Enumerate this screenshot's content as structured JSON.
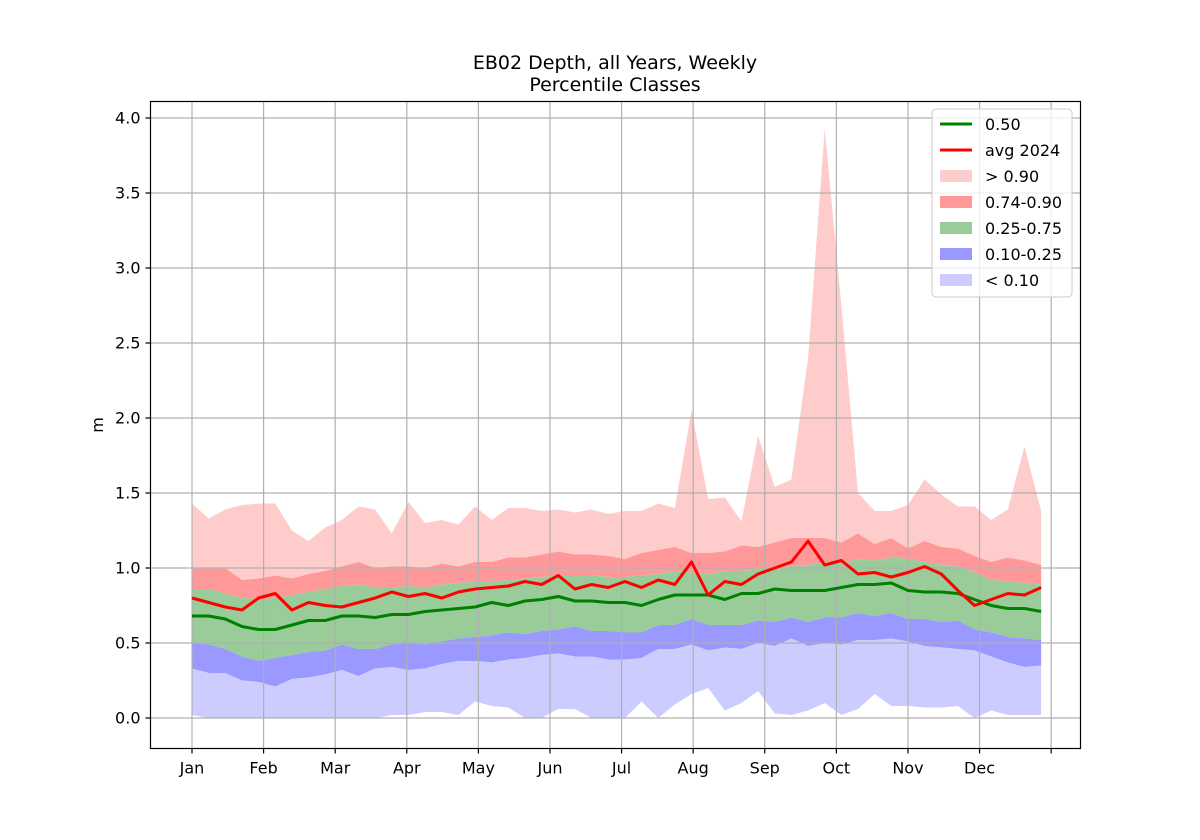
{
  "chart_data": {
    "type": "area",
    "title": "EB02 Depth, all Years, Weekly",
    "subtitle": "Percentile Classes",
    "xlabel": "",
    "ylabel": "m",
    "ylim": [
      -0.2,
      4.12
    ],
    "yticks": [
      "0.0",
      "0.5",
      "1.0",
      "1.5",
      "2.0",
      "2.5",
      "3.0",
      "3.5",
      "4.0"
    ],
    "xticks": [
      "Jan",
      "Feb",
      "Mar",
      "Apr",
      "May",
      "Jun",
      "Jul",
      "Aug",
      "Sep",
      "Oct",
      "Nov",
      "Dec",
      ""
    ],
    "grid": true,
    "legend_position": "top-right",
    "weeks": 52,
    "colors": {
      "median": "#008000",
      "avg2024": "#ff0000",
      "gt90": "#ffcccc",
      "p74_90": "#ff9999",
      "p25_75": "#99cc99",
      "p10_25": "#9999ff",
      "lt10": "#ccccff"
    },
    "legend": [
      {
        "label": "0.50",
        "kind": "line",
        "color": "#008000"
      },
      {
        "label": "avg 2024",
        "kind": "line",
        "color": "#ff0000"
      },
      {
        "label": "> 0.90",
        "kind": "patch",
        "color": "#ffcccc"
      },
      {
        "label": "0.74-0.90",
        "kind": "patch",
        "color": "#ff9999"
      },
      {
        "label": "0.25-0.75",
        "kind": "patch",
        "color": "#99cc99"
      },
      {
        "label": "0.10-0.25",
        "kind": "patch",
        "color": "#9999ff"
      },
      {
        "label": "< 0.10",
        "kind": "patch",
        "color": "#ccccff"
      }
    ],
    "series": {
      "max": [
        1.43,
        1.33,
        1.39,
        1.42,
        1.43,
        1.43,
        1.25,
        1.18,
        1.27,
        1.32,
        1.41,
        1.39,
        1.23,
        1.44,
        1.3,
        1.32,
        1.29,
        1.41,
        1.32,
        1.4,
        1.4,
        1.38,
        1.39,
        1.37,
        1.39,
        1.36,
        1.38,
        1.38,
        1.43,
        1.4,
        2.05,
        1.46,
        1.47,
        1.31,
        1.88,
        1.54,
        1.59,
        2.4,
        3.93,
        2.75,
        1.5,
        1.38,
        1.38,
        1.42,
        1.59,
        1.49,
        1.41,
        1.41,
        1.32,
        1.39,
        1.81,
        1.38
      ],
      "p90": [
        1.0,
        1.0,
        1.0,
        0.92,
        0.93,
        0.95,
        0.93,
        0.96,
        0.98,
        1.01,
        1.04,
        1.0,
        1.01,
        1.01,
        1.0,
        1.03,
        1.01,
        1.04,
        1.04,
        1.07,
        1.07,
        1.09,
        1.11,
        1.09,
        1.09,
        1.08,
        1.06,
        1.1,
        1.12,
        1.14,
        1.1,
        1.1,
        1.11,
        1.15,
        1.14,
        1.17,
        1.2,
        1.2,
        1.2,
        1.17,
        1.23,
        1.16,
        1.2,
        1.13,
        1.18,
        1.14,
        1.13,
        1.08,
        1.04,
        1.07,
        1.05,
        1.02
      ],
      "p74": [
        0.86,
        0.86,
        0.83,
        0.8,
        0.79,
        0.8,
        0.82,
        0.84,
        0.86,
        0.88,
        0.89,
        0.87,
        0.87,
        0.88,
        0.87,
        0.89,
        0.9,
        0.91,
        0.91,
        0.92,
        0.93,
        0.94,
        0.95,
        0.95,
        0.95,
        0.94,
        0.94,
        0.95,
        0.96,
        0.98,
        0.97,
        0.96,
        0.98,
        0.98,
        0.99,
        1.01,
        1.01,
        1.02,
        1.04,
        1.03,
        1.06,
        1.05,
        1.07,
        1.06,
        1.04,
        1.02,
        1.01,
        0.97,
        0.92,
        0.91,
        0.9,
        0.89
      ],
      "p25": [
        0.5,
        0.49,
        0.46,
        0.41,
        0.38,
        0.4,
        0.42,
        0.44,
        0.45,
        0.49,
        0.46,
        0.46,
        0.49,
        0.5,
        0.49,
        0.51,
        0.53,
        0.54,
        0.55,
        0.57,
        0.56,
        0.58,
        0.59,
        0.61,
        0.58,
        0.58,
        0.57,
        0.57,
        0.62,
        0.62,
        0.66,
        0.62,
        0.62,
        0.62,
        0.65,
        0.64,
        0.67,
        0.64,
        0.67,
        0.67,
        0.7,
        0.68,
        0.7,
        0.66,
        0.66,
        0.64,
        0.65,
        0.59,
        0.57,
        0.54,
        0.53,
        0.52
      ],
      "p10": [
        0.33,
        0.3,
        0.3,
        0.25,
        0.24,
        0.21,
        0.26,
        0.27,
        0.29,
        0.32,
        0.28,
        0.33,
        0.34,
        0.32,
        0.33,
        0.36,
        0.38,
        0.38,
        0.37,
        0.39,
        0.4,
        0.42,
        0.43,
        0.41,
        0.41,
        0.39,
        0.39,
        0.4,
        0.46,
        0.46,
        0.49,
        0.45,
        0.47,
        0.46,
        0.5,
        0.48,
        0.53,
        0.48,
        0.5,
        0.49,
        0.52,
        0.52,
        0.53,
        0.51,
        0.48,
        0.47,
        0.46,
        0.45,
        0.41,
        0.37,
        0.34,
        0.35
      ],
      "min": [
        0.02,
        0.0,
        0.0,
        0.0,
        0.0,
        0.0,
        0.0,
        0.0,
        0.0,
        0.0,
        0.0,
        0.0,
        0.02,
        0.02,
        0.04,
        0.04,
        0.02,
        0.11,
        0.08,
        0.07,
        0.0,
        0.0,
        0.06,
        0.06,
        0.0,
        0.0,
        0.0,
        0.11,
        0.0,
        0.09,
        0.16,
        0.2,
        0.05,
        0.1,
        0.18,
        0.03,
        0.02,
        0.05,
        0.1,
        0.02,
        0.06,
        0.16,
        0.08,
        0.08,
        0.07,
        0.07,
        0.08,
        0.0,
        0.05,
        0.02,
        0.02,
        0.02
      ],
      "median": [
        0.68,
        0.68,
        0.66,
        0.61,
        0.59,
        0.59,
        0.62,
        0.65,
        0.65,
        0.68,
        0.68,
        0.67,
        0.69,
        0.69,
        0.71,
        0.72,
        0.73,
        0.74,
        0.77,
        0.75,
        0.78,
        0.79,
        0.81,
        0.78,
        0.78,
        0.77,
        0.77,
        0.75,
        0.79,
        0.82,
        0.82,
        0.82,
        0.79,
        0.83,
        0.83,
        0.86,
        0.85,
        0.85,
        0.85,
        0.87,
        0.89,
        0.89,
        0.9,
        0.85,
        0.84,
        0.84,
        0.83,
        0.79,
        0.75,
        0.73,
        0.73,
        0.71
      ],
      "avg2024": [
        0.8,
        0.77,
        0.74,
        0.72,
        0.8,
        0.83,
        0.72,
        0.77,
        0.75,
        0.74,
        0.77,
        0.8,
        0.84,
        0.81,
        0.83,
        0.8,
        0.84,
        0.86,
        0.87,
        0.88,
        0.91,
        0.89,
        0.95,
        0.86,
        0.89,
        0.87,
        0.91,
        0.87,
        0.92,
        0.89,
        1.04,
        0.82,
        0.91,
        0.89,
        0.96,
        1.0,
        1.04,
        1.18,
        1.02,
        1.05,
        0.96,
        0.97,
        0.94,
        0.97,
        1.01,
        0.96,
        0.85,
        0.75,
        0.79,
        0.83,
        0.82,
        0.87
      ]
    }
  }
}
